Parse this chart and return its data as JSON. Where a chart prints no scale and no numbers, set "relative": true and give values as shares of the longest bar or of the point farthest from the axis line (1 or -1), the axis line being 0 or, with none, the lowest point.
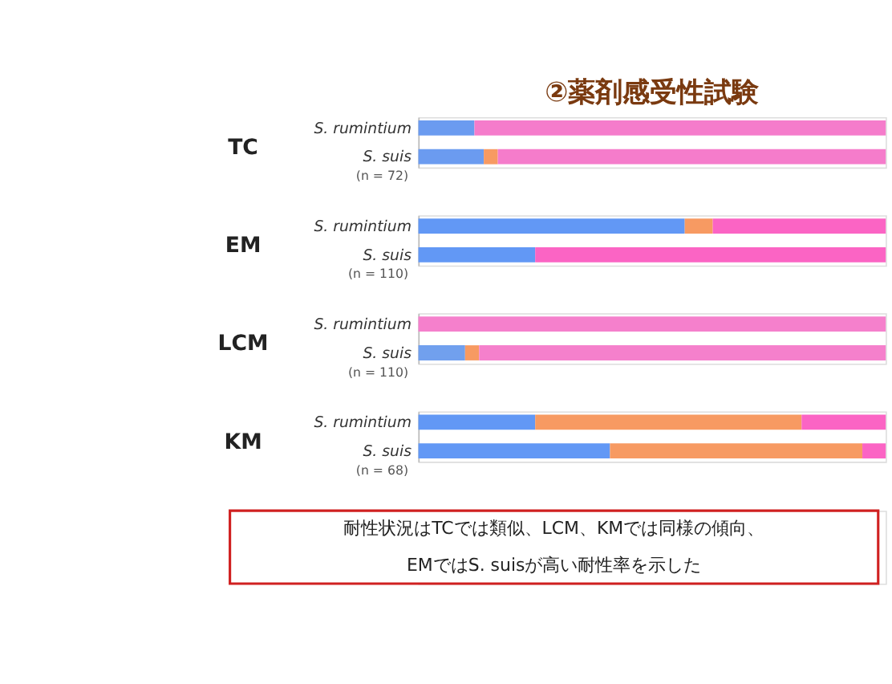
{
  "chart_data": [
    {
      "type": "bar",
      "orientation": "horizontal",
      "stacked": true,
      "relative": true,
      "title": "②薬剤感受性試験",
      "ylabel": "TC",
      "annotations": [
        "(n = 72)"
      ],
      "categories": [
        "S. rumintium",
        "S. suis"
      ],
      "series": [
        {
          "color": "#6b9bf0",
          "values": [
            0.12,
            0.14
          ]
        },
        {
          "color": "#f79a62",
          "values": [
            0,
            0.03
          ]
        },
        {
          "color": "#f57ccb",
          "values": [
            0.88,
            0.83
          ]
        }
      ]
    },
    {
      "type": "bar",
      "orientation": "horizontal",
      "stacked": true,
      "relative": true,
      "ylabel": "EM",
      "annotations": [
        "(n = 110)"
      ],
      "categories": [
        "S. rumintium",
        "S. suis"
      ],
      "series": [
        {
          "color": "#6298f5",
          "values": [
            0.57,
            0.25
          ]
        },
        {
          "color": "#f79a62",
          "values": [
            0.06,
            0
          ]
        },
        {
          "color": "#fb64c4",
          "values": [
            0.37,
            0.75
          ]
        }
      ]
    },
    {
      "type": "bar",
      "orientation": "horizontal",
      "stacked": true,
      "relative": true,
      "ylabel": "LCM",
      "annotations": [
        "(n = 110)"
      ],
      "categories": [
        "S. rumintium",
        "S. suis"
      ],
      "series": [
        {
          "color": "#71a0ee",
          "values": [
            0,
            0.1
          ]
        },
        {
          "color": "#f79a62",
          "values": [
            0,
            0.03
          ]
        },
        {
          "color": "#f580cc",
          "values": [
            1.0,
            0.87
          ]
        }
      ]
    },
    {
      "type": "bar",
      "orientation": "horizontal",
      "stacked": true,
      "relative": true,
      "ylabel": "KM",
      "annotations": [
        "(n = 68)",
        "耐性状況はTCでは類似、LCM、KMでは同様の傾向、\nEMではS. suisが高い耐性率を示した"
      ],
      "categories": [
        "S. rumintium",
        "S. suis"
      ],
      "series": [
        {
          "color": "#6298f5",
          "values": [
            0.25,
            0.41
          ]
        },
        {
          "color": "#f79a62",
          "values": [
            0.57,
            0.54
          ]
        },
        {
          "color": "#fb64c4",
          "values": [
            0.18,
            0.05
          ]
        }
      ]
    }
  ]
}
